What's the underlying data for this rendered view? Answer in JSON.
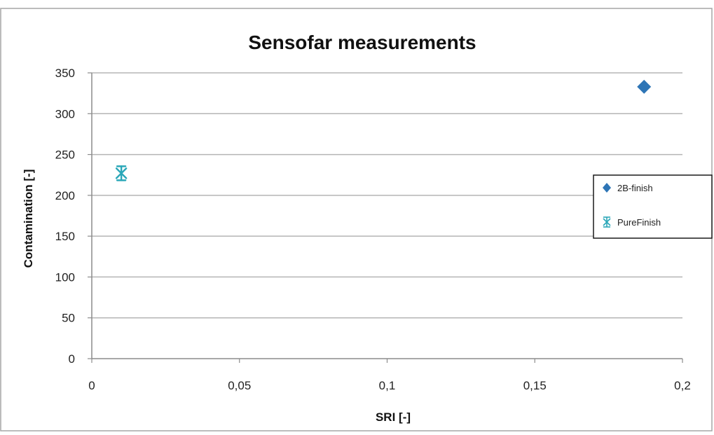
{
  "chart_data": {
    "type": "scatter",
    "title": "Sensofar measurements",
    "xlabel": "SRI [-]",
    "ylabel": "Contamination  [-]",
    "xlim": [
      0,
      0.2
    ],
    "ylim": [
      0,
      350
    ],
    "x_ticks": [
      "0",
      "0,05",
      "0,1",
      "0,15",
      "0,2"
    ],
    "y_ticks": [
      "0",
      "50",
      "100",
      "150",
      "200",
      "250",
      "300",
      "350"
    ],
    "grid": "horizontal",
    "legend_position": "right",
    "series": [
      {
        "name": "2B-finish",
        "marker": "diamond",
        "color": "#2e75b6",
        "points": [
          {
            "x": 0.187,
            "y": 333
          }
        ]
      },
      {
        "name": "PureFinish",
        "marker": "asterisk",
        "color": "#2aa7b8",
        "points": [
          {
            "x": 0.01,
            "y": 227
          }
        ]
      }
    ]
  }
}
